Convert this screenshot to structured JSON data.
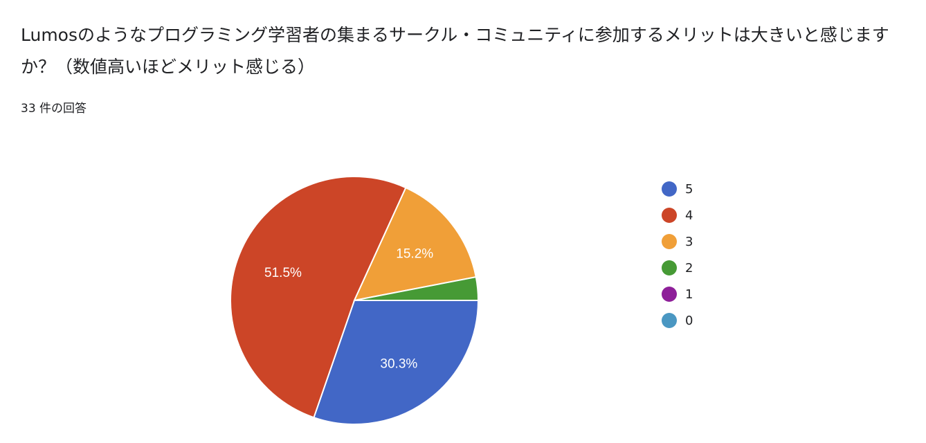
{
  "question": "Lumosのようなプログラミング学習者の集まるサークル・コミュニティに参加するメリットは大きいと感じますか？（数値高いほどメリット感じる）",
  "response_count": "33 件の回答",
  "chart_data": {
    "type": "pie",
    "categories": [
      "5",
      "4",
      "3",
      "2",
      "1",
      "0"
    ],
    "values": [
      10,
      17,
      5,
      1,
      0,
      0
    ],
    "percent_labels": [
      "30.3%",
      "51.5%",
      "15.2%",
      "",
      "",
      ""
    ],
    "colors": [
      "#4267c6",
      "#cc4527",
      "#f09f38",
      "#469a35",
      "#8e1f99",
      "#4a97c2"
    ],
    "legend_position": "right"
  }
}
